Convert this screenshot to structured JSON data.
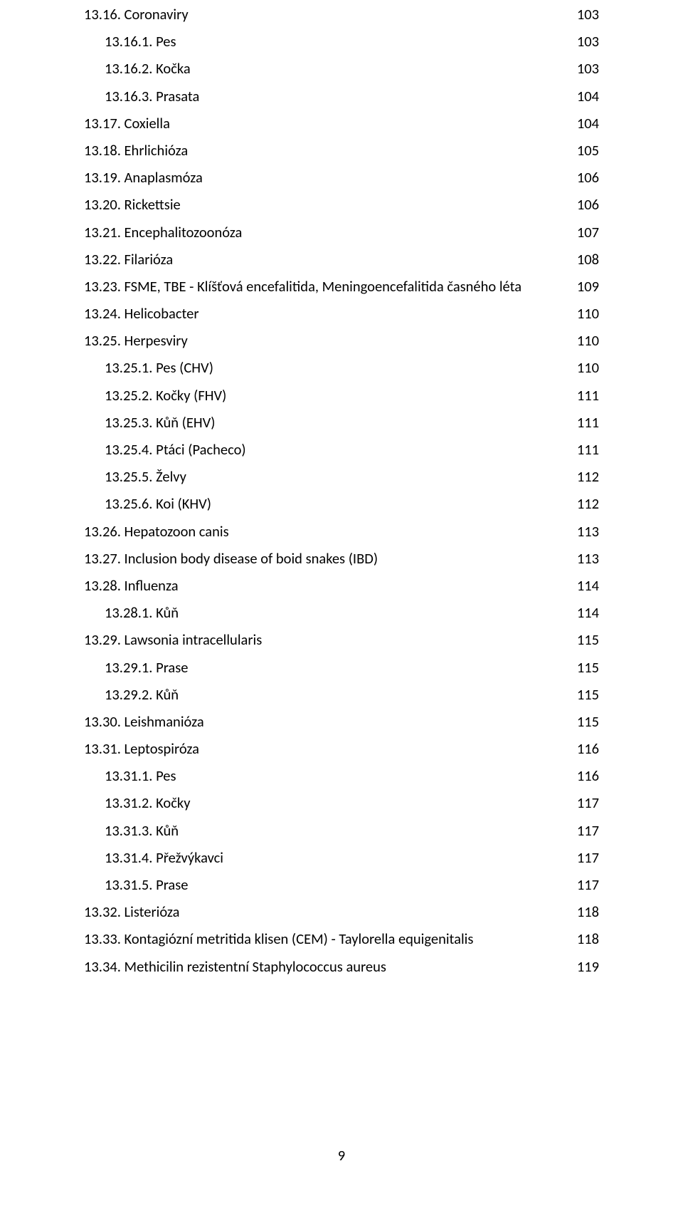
{
  "page_number": "9",
  "toc": [
    {
      "indent": 0,
      "label": "13.16. Coronaviry",
      "page": "103"
    },
    {
      "indent": 1,
      "label": "13.16.1. Pes",
      "page": "103"
    },
    {
      "indent": 1,
      "label": "13.16.2. Kočka",
      "page": "103"
    },
    {
      "indent": 1,
      "label": "13.16.3. Prasata",
      "page": "104"
    },
    {
      "indent": 0,
      "label": "13.17. Coxiella",
      "page": "104"
    },
    {
      "indent": 0,
      "label": "13.18. Ehrlichióza",
      "page": "105"
    },
    {
      "indent": 0,
      "label": "13.19. Anaplasmóza",
      "page": "106"
    },
    {
      "indent": 0,
      "label": "13.20. Rickettsie",
      "page": "106"
    },
    {
      "indent": 0,
      "label": "13.21. Encephalitozoonóza",
      "page": "107"
    },
    {
      "indent": 0,
      "label": "13.22. Filarióza",
      "page": "108"
    },
    {
      "indent": 0,
      "label": "13.23. FSME, TBE - Klíšťová encefalitida, Meningoencefalitida časného léta",
      "page": "109"
    },
    {
      "indent": 0,
      "label": "13.24. Helicobacter",
      "page": "110"
    },
    {
      "indent": 0,
      "label": "13.25. Herpesviry",
      "page": "110"
    },
    {
      "indent": 1,
      "label": "13.25.1. Pes (CHV)",
      "page": "110"
    },
    {
      "indent": 1,
      "label": "13.25.2. Kočky (FHV)",
      "page": "111"
    },
    {
      "indent": 1,
      "label": "13.25.3. Kůň (EHV)",
      "page": "111"
    },
    {
      "indent": 1,
      "label": "13.25.4. Ptáci (Pacheco)",
      "page": "111"
    },
    {
      "indent": 1,
      "label": "13.25.5. Želvy",
      "page": "112"
    },
    {
      "indent": 1,
      "label": "13.25.6. Koi (KHV)",
      "page": "112"
    },
    {
      "indent": 0,
      "label": "13.26. Hepatozoon canis",
      "page": "113"
    },
    {
      "indent": 0,
      "label": "13.27. Inclusion body disease of boid snakes (IBD)",
      "page": "113"
    },
    {
      "indent": 0,
      "label": "13.28. Influenza",
      "page": "114"
    },
    {
      "indent": 1,
      "label": "13.28.1. Kůň",
      "page": "114"
    },
    {
      "indent": 0,
      "label": "13.29. Lawsonia intracellularis",
      "page": "115"
    },
    {
      "indent": 1,
      "label": "13.29.1. Prase",
      "page": "115"
    },
    {
      "indent": 1,
      "label": "13.29.2. Kůň",
      "page": "115"
    },
    {
      "indent": 0,
      "label": "13.30. Leishmanióza",
      "page": "115"
    },
    {
      "indent": 0,
      "label": "13.31. Leptospiróza",
      "page": "116"
    },
    {
      "indent": 1,
      "label": "13.31.1. Pes",
      "page": "116"
    },
    {
      "indent": 1,
      "label": "13.31.2. Kočky",
      "page": "117"
    },
    {
      "indent": 1,
      "label": "13.31.3. Kůň",
      "page": "117"
    },
    {
      "indent": 1,
      "label": "13.31.4. Přežvýkavci",
      "page": "117"
    },
    {
      "indent": 1,
      "label": "13.31.5. Prase",
      "page": "117"
    },
    {
      "indent": 0,
      "label": "13.32. Listerióza",
      "page": "118"
    },
    {
      "indent": 0,
      "label": "13.33. Kontagiózní metritida klisen (CEM) - Taylorella equigenitalis",
      "page": "118"
    },
    {
      "indent": 0,
      "label": "13.34. Methicilin rezistentní Staphylococcus aureus",
      "page": "119"
    }
  ]
}
